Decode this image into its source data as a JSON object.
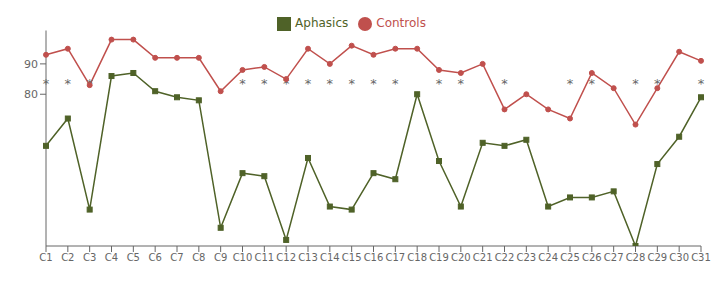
{
  "chart_data": {
    "type": "line",
    "categories": [
      "C1",
      "C2",
      "C3",
      "C4",
      "C5",
      "C6",
      "C7",
      "C8",
      "C9",
      "C10",
      "C11",
      "C12",
      "C13",
      "C14",
      "C15",
      "C16",
      "C17",
      "C18",
      "C19",
      "C20",
      "C21",
      "C22",
      "C23",
      "C24",
      "C25",
      "C26",
      "C27",
      "C28",
      "C29",
      "C30",
      "C31"
    ],
    "series": [
      {
        "name": "Controls",
        "color": "#C0504D",
        "marker": "circle",
        "values": [
          93,
          95,
          83,
          98,
          98,
          92,
          92,
          92,
          81,
          88,
          89,
          85,
          95,
          90,
          96,
          93,
          95,
          95,
          88,
          87,
          90,
          75,
          80,
          75,
          72,
          87,
          82,
          70,
          82,
          94,
          91
        ]
      },
      {
        "name": "Aphasics",
        "color": "#4F6228",
        "marker": "square",
        "values": [
          63,
          72,
          42,
          86,
          87,
          81,
          79,
          78,
          36,
          54,
          53,
          32,
          59,
          43,
          42,
          54,
          52,
          80,
          58,
          43,
          64,
          63,
          65,
          43,
          46,
          46,
          48,
          30,
          57,
          66,
          79
        ]
      }
    ],
    "ylim": [
      30,
      101
    ],
    "yticks": [
      80,
      90
    ],
    "grid": false,
    "legend": "top",
    "annotations": [
      {
        "text": "*",
        "x": "C1",
        "y": 83.5
      },
      {
        "text": "*",
        "x": "C2",
        "y": 83.5
      },
      {
        "text": "*",
        "x": "C3",
        "y": 83.5
      },
      {
        "text": "*",
        "x": "C10",
        "y": 83.5
      },
      {
        "text": "*",
        "x": "C11",
        "y": 83.5
      },
      {
        "text": "*",
        "x": "C12",
        "y": 83.5
      },
      {
        "text": "*",
        "x": "C13",
        "y": 83.5
      },
      {
        "text": "*",
        "x": "C14",
        "y": 83.5
      },
      {
        "text": "*",
        "x": "C15",
        "y": 83.5
      },
      {
        "text": "*",
        "x": "C16",
        "y": 83.5
      },
      {
        "text": "*",
        "x": "C17",
        "y": 83.5
      },
      {
        "text": "*",
        "x": "C19",
        "y": 83.5
      },
      {
        "text": "*",
        "x": "C20",
        "y": 83.5
      },
      {
        "text": "*",
        "x": "C22",
        "y": 83.5
      },
      {
        "text": "*",
        "x": "C25",
        "y": 83.5
      },
      {
        "text": "*",
        "x": "C26",
        "y": 83.5
      },
      {
        "text": "*",
        "x": "C28",
        "y": 83.5
      },
      {
        "text": "*",
        "x": "C29",
        "y": 83.5
      },
      {
        "text": "*",
        "x": "C31",
        "y": 83.5
      }
    ]
  }
}
